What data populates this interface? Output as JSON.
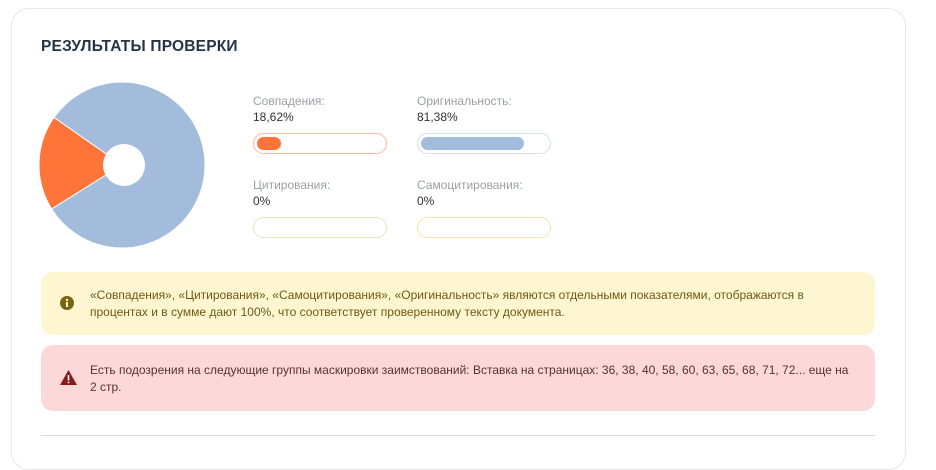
{
  "title": "РЕЗУЛЬТАТЫ ПРОВЕРКИ",
  "colors": {
    "matches": "#ff7539",
    "originality": "#a3bcdc",
    "citations": "#dfe8c0",
    "self_citations": "#f8e4a8"
  },
  "chart_data": {
    "type": "pie",
    "slices": [
      {
        "name": "Совпадения",
        "value": 18.62,
        "color": "#ff7539"
      },
      {
        "name": "Оригинальность",
        "value": 81.38,
        "color": "#a3bcdc"
      }
    ]
  },
  "metrics": [
    {
      "label": "Совпадения:",
      "value": "18,62%",
      "percent": 18.62,
      "color": "#ff7539",
      "border": "#fdb9a0"
    },
    {
      "label": "Оригинальность:",
      "value": "81,38%",
      "percent": 81.38,
      "color": "#a3bcdc",
      "border": "#d5e0ee"
    },
    {
      "label": "Цитирования:",
      "value": "0%",
      "percent": 0,
      "color": "#cde0a0",
      "border": "#dfe8c0"
    },
    {
      "label": "Самоцитирования:",
      "value": "0%",
      "percent": 0,
      "color": "#f5d77a",
      "border": "#f8e4a8"
    }
  ],
  "info_alert": {
    "icon": "info-icon",
    "text": "«Совпадения», «Цитирования», «Самоцитирования», «Оригинальность» являются отдельными показателями, отображаются в процентах и в сумме дают 100%, что соответствует проверенному тексту документа."
  },
  "warning_alert": {
    "icon": "warning-icon",
    "text": "Есть подозрения на следующие группы маскировки заимствований:  Вставка на страницах: 36, 38, 40, 58, 60, 63, 65, 68, 71, 72... еще на 2 стр."
  }
}
